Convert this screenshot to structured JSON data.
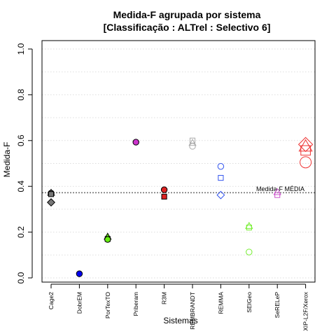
{
  "chart_data": {
    "type": "scatter",
    "title": "Medida-F agrupada por sistema",
    "subtitle": "[Classificação : ALTrel : Selectivo 6]",
    "xlabel": "Sistemas",
    "ylabel": "Medida-F",
    "ylim": [
      0,
      1.0
    ],
    "yticks": [
      "0.0",
      "0.2",
      "0.4",
      "0.6",
      "0.8",
      "1.0"
    ],
    "grid": true,
    "categories": [
      "Cage2",
      "DobrEM",
      "PorTexTO",
      "Priberam",
      "R3M",
      "REMBRANDT",
      "REMMA",
      "SEIGeo",
      "SeRELeP",
      "XIP-L2F/Xerox"
    ],
    "reference_line": {
      "label": "Medida-F MÉDIA",
      "value": 0.372,
      "color": "#777777"
    },
    "series": [
      {
        "category": "Cage2",
        "color": "#777777",
        "filled": true,
        "points": [
          {
            "shape": "circle",
            "y": 0.37
          },
          {
            "shape": "triangle",
            "y": 0.372
          },
          {
            "shape": "square",
            "y": 0.366
          },
          {
            "shape": "diamond",
            "y": 0.33
          }
        ]
      },
      {
        "category": "DobrEM",
        "color": "#0000ee",
        "filled": true,
        "points": [
          {
            "shape": "circle",
            "y": 0.018
          }
        ]
      },
      {
        "category": "PorTexTO",
        "color": "#66ee11",
        "filled": true,
        "points": [
          {
            "shape": "triangle",
            "y": 0.18
          },
          {
            "shape": "square",
            "y": 0.17
          },
          {
            "shape": "circle",
            "y": 0.168
          }
        ]
      },
      {
        "category": "Priberam",
        "color": "#cc33cc",
        "filled": true,
        "points": [
          {
            "shape": "circle",
            "y": 0.593
          }
        ]
      },
      {
        "category": "R3M",
        "color": "#dd2222",
        "filled": true,
        "points": [
          {
            "shape": "circle",
            "y": 0.385
          },
          {
            "shape": "square",
            "y": 0.355
          }
        ]
      },
      {
        "category": "REMBRANDT",
        "color": "#aaaaaa",
        "filled": false,
        "points": [
          {
            "shape": "square",
            "y": 0.6
          },
          {
            "shape": "triangle",
            "y": 0.59
          },
          {
            "shape": "circle",
            "y": 0.575
          }
        ]
      },
      {
        "category": "REMMA",
        "color": "#3355ee",
        "filled": false,
        "points": [
          {
            "shape": "circle",
            "y": 0.487
          },
          {
            "shape": "square",
            "y": 0.437
          },
          {
            "shape": "diamond",
            "y": 0.362
          }
        ]
      },
      {
        "category": "SEIGeo",
        "color": "#77ee33",
        "filled": false,
        "points": [
          {
            "shape": "triangle",
            "y": 0.227
          },
          {
            "shape": "square",
            "y": 0.22
          },
          {
            "shape": "circle",
            "y": 0.113
          }
        ]
      },
      {
        "category": "SeRELeP",
        "color": "#cc55cc",
        "filled": false,
        "points": [
          {
            "shape": "triangle",
            "y": 0.375
          },
          {
            "shape": "square",
            "y": 0.362
          }
        ]
      },
      {
        "category": "XIP-L2F/Xerox",
        "color": "#ee3333",
        "filled": false,
        "size": "large",
        "points": [
          {
            "shape": "diamond",
            "y": 0.583
          },
          {
            "shape": "triangle",
            "y": 0.575
          },
          {
            "shape": "square",
            "y": 0.557
          },
          {
            "shape": "circle",
            "y": 0.505
          }
        ]
      }
    ]
  }
}
